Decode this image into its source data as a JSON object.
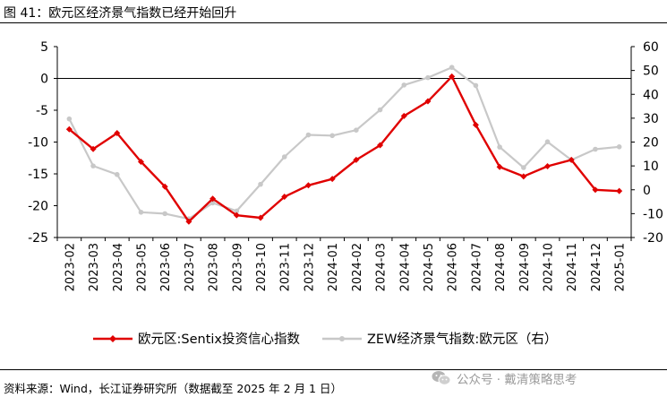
{
  "header": {
    "title": "图 41：欧元区经济景气指数已经开始回升"
  },
  "footer": {
    "source": "资料来源：Wind，长江证券研究所（数据截至 2025 年 2 月 1 日）",
    "watermark": "公众号 · 戴清策略思考"
  },
  "chart_data": {
    "type": "line",
    "categories": [
      "2023-02",
      "2023-03",
      "2023-04",
      "2023-05",
      "2023-06",
      "2023-07",
      "2023-08",
      "2023-09",
      "2023-10",
      "2023-11",
      "2023-12",
      "2024-01",
      "2024-02",
      "2024-03",
      "2024-04",
      "2024-05",
      "2024-06",
      "2024-07",
      "2024-08",
      "2024-09",
      "2024-10",
      "2024-11",
      "2024-12",
      "2025-01"
    ],
    "y_left": {
      "min": -25,
      "max": 5,
      "ticks": [
        5,
        0,
        -5,
        -10,
        -15,
        -20,
        -25
      ]
    },
    "y_right": {
      "min": -20,
      "max": 60,
      "ticks": [
        60,
        50,
        40,
        30,
        20,
        10,
        0,
        -10,
        -20
      ]
    },
    "series": [
      {
        "name": "欧元区:Sentix投资信心指数",
        "axis": "left",
        "color": "#e00000",
        "marker": "diamond",
        "values": [
          -8.0,
          -11.1,
          -8.6,
          -13.1,
          -17.0,
          -22.5,
          -18.9,
          -21.5,
          -21.9,
          -18.6,
          -16.8,
          -15.8,
          -12.8,
          -10.5,
          -5.9,
          -3.6,
          0.3,
          -7.3,
          -13.9,
          -15.4,
          -13.8,
          -12.8,
          -17.5,
          -17.7
        ]
      },
      {
        "name": "ZEW经济景气指数:欧元区（右）",
        "axis": "right",
        "color": "#c8c8c8",
        "marker": "circle",
        "values": [
          29.7,
          10.0,
          6.4,
          -9.4,
          -10.0,
          -12.2,
          -5.5,
          -8.9,
          2.3,
          13.8,
          23.0,
          22.7,
          25.0,
          33.5,
          43.9,
          47.0,
          51.3,
          43.7,
          17.9,
          9.3,
          20.1,
          12.5,
          17.0,
          18.0
        ]
      }
    ],
    "legend": {
      "placement": "bottom"
    },
    "grid": false
  }
}
